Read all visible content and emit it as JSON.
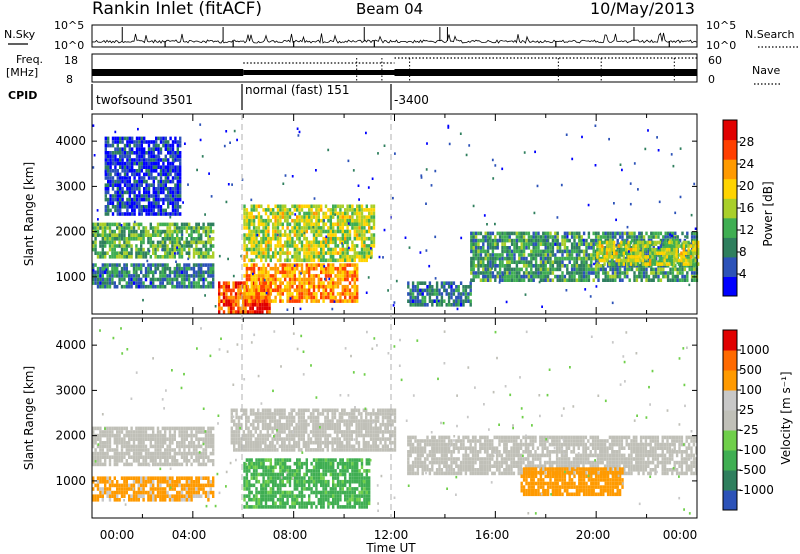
{
  "header": {
    "station": "Rankin Inlet (fitACF)",
    "beam": "Beam 04",
    "date": "10/May/2013"
  },
  "noise_panel": {
    "left_label": "N.Sky",
    "right_label": "N.Search",
    "y_ticks_left": [
      "10^5",
      "10^0"
    ],
    "y_ticks_right": [
      "10^5",
      "10^0"
    ]
  },
  "freq_panel": {
    "left_label": "Freq.",
    "left_unit": "[MHz]",
    "left_ticks": [
      "18",
      "8"
    ],
    "right_label": "Nave",
    "right_ticks": [
      "60",
      "0"
    ]
  },
  "cpid": {
    "label": "CPID",
    "modes": [
      {
        "name": "twofsound 3501",
        "start": "00:00",
        "end": "06:00"
      },
      {
        "name": "normal (fast) 151",
        "start": "06:00",
        "end": "12:00"
      },
      {
        "name": "-3400",
        "start": "12:00",
        "end": "24:00"
      }
    ]
  },
  "x_axis": {
    "label": "Time UT",
    "ticks": [
      "00:00",
      "04:00",
      "08:00",
      "12:00",
      "16:00",
      "20:00",
      "00:00"
    ]
  },
  "chart_data": [
    {
      "type": "heatmap",
      "title": "Power",
      "ylabel": "Slant Range [km]",
      "yticks": [
        1000,
        2000,
        3000,
        4000
      ],
      "ylim": [
        180,
        4600
      ],
      "xlim_hours": [
        0,
        24
      ],
      "colorbar": {
        "label": "Power [dB]",
        "ticks": [
          4,
          8,
          12,
          16,
          20,
          24,
          28
        ],
        "colors": [
          "#0000ff",
          "#2c52b8",
          "#2f7f5e",
          "#3fae52",
          "#a9cf2a",
          "#ffd400",
          "#ff9a00",
          "#ff3f00",
          "#e00000"
        ]
      },
      "regions": [
        {
          "t": [
            0.0,
            4.8
          ],
          "r": [
            1450,
            2200
          ],
          "v": 14
        },
        {
          "t": [
            0.0,
            4.8
          ],
          "r": [
            750,
            1300
          ],
          "v": 10
        },
        {
          "t": [
            0.5,
            3.5
          ],
          "r": [
            2400,
            4100
          ],
          "v": 6
        },
        {
          "t": [
            5.0,
            7.0
          ],
          "r": [
            200,
            900
          ],
          "v": 28
        },
        {
          "t": [
            6.0,
            10.5
          ],
          "r": [
            500,
            1300
          ],
          "v": 24
        },
        {
          "t": [
            6.0,
            11.2
          ],
          "r": [
            1400,
            2600
          ],
          "v": 18
        },
        {
          "t": [
            12.5,
            15.0
          ],
          "r": [
            350,
            900
          ],
          "v": 10
        },
        {
          "t": [
            15.0,
            24.0
          ],
          "r": [
            900,
            2000
          ],
          "v": 12
        },
        {
          "t": [
            20.0,
            24.0
          ],
          "r": [
            1300,
            1800
          ],
          "v": 18
        }
      ]
    },
    {
      "type": "heatmap",
      "title": "Velocity",
      "ylabel": "Slant Range [km]",
      "yticks": [
        1000,
        2000,
        3000,
        4000
      ],
      "ylim": [
        180,
        4600
      ],
      "xlim_hours": [
        0,
        24
      ],
      "colorbar": {
        "label": "Velocity [m s⁻¹]",
        "ticks": [
          1000,
          500,
          100,
          25,
          -25,
          -100,
          -500,
          -1000
        ],
        "colors": [
          "#2c52b8",
          "#2f7f5e",
          "#3fae52",
          "#6fcf4a",
          "#c0c0b8",
          "#c8c8c8",
          "#ff9a00",
          "#ff6a00",
          "#e00000"
        ]
      },
      "regions": [
        {
          "t": [
            0.0,
            4.8
          ],
          "r": [
            1400,
            2200
          ],
          "v": 0
        },
        {
          "t": [
            0.0,
            4.8
          ],
          "r": [
            600,
            1100
          ],
          "v": -150
        },
        {
          "t": [
            5.5,
            12.0
          ],
          "r": [
            1700,
            2600
          ],
          "v": 0
        },
        {
          "t": [
            6.0,
            11.0
          ],
          "r": [
            400,
            1500
          ],
          "v": 150
        },
        {
          "t": [
            12.5,
            24.0
          ],
          "r": [
            1200,
            2000
          ],
          "v": 0
        },
        {
          "t": [
            17.0,
            21.0
          ],
          "r": [
            700,
            1300
          ],
          "v": -300
        }
      ]
    }
  ]
}
